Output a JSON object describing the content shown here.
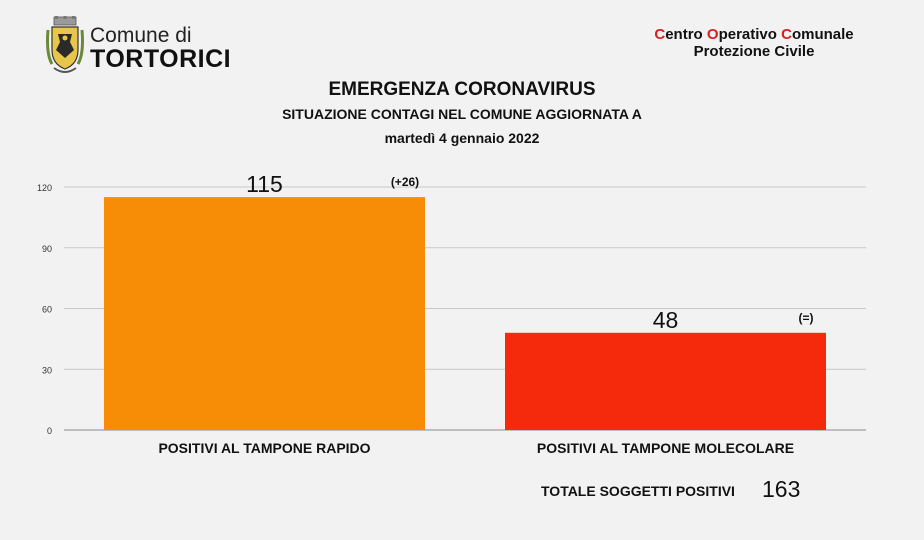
{
  "header": {
    "comune_prefix": "Comune di",
    "town": "TORTORICI",
    "coc": {
      "w1_initial": "C",
      "w1_rest": "entro",
      "w2_initial": "O",
      "w2_rest": "perativo",
      "w3_initial": "C",
      "w3_rest": "omunale",
      "subtitle": "Protezione Civile"
    }
  },
  "title": "EMERGENZA CORONAVIRUS",
  "subtitle": "SITUAZIONE CONTAGI NEL COMUNE AGGIORNATA A",
  "date": "martedì 4 gennaio 2022",
  "colors": {
    "bar_rapido": "#f78c07",
    "bar_molecolare": "#f5290b",
    "accent_red": "#d81f1f",
    "gridline": "#c8c8c8",
    "background": "#f2f2f2"
  },
  "chart_data": {
    "type": "bar",
    "categories": [
      "POSITIVI AL TAMPONE RAPIDO",
      "POSITIVI AL TAMPONE MOLECOLARE"
    ],
    "values": [
      115,
      48
    ],
    "value_labels": [
      "115",
      "48"
    ],
    "change_labels": [
      "(+26)",
      "(=)"
    ],
    "ylim": [
      0,
      120
    ],
    "yticks": [
      0,
      30,
      60,
      90,
      120
    ],
    "grid": true,
    "legend": "none"
  },
  "total": {
    "label": "TOTALE SOGGETTI POSITIVI",
    "value": "163"
  }
}
